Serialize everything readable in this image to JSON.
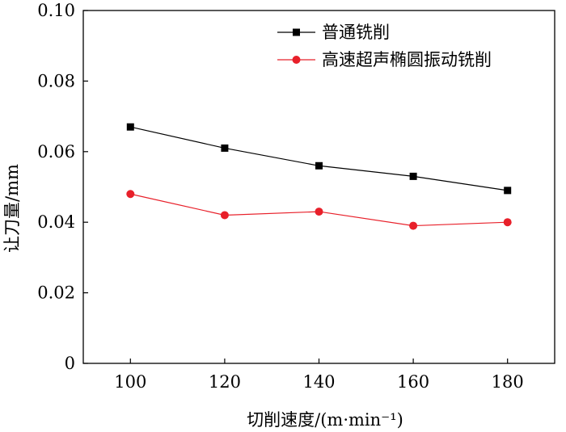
{
  "chart_data": {
    "type": "line",
    "title": "",
    "xlabel": "切削速度/(m·min⁻¹)",
    "ylabel": "让刀量/mm",
    "x": [
      100,
      120,
      140,
      160,
      180
    ],
    "xlim": [
      90,
      190
    ],
    "ylim": [
      0,
      0.1
    ],
    "xticks": [
      100,
      120,
      140,
      160,
      180
    ],
    "xtick_labels": [
      "100",
      "120",
      "140",
      "160",
      "180"
    ],
    "yticks": [
      0,
      0.02,
      0.04,
      0.06,
      0.08,
      0.1
    ],
    "ytick_labels": [
      "0",
      "0.02",
      "0.04",
      "0.06",
      "0.08",
      "0.10"
    ],
    "grid": false,
    "legend_position": "top-right",
    "series": [
      {
        "name": "普通铣削",
        "color": "#000000",
        "marker": "square",
        "values": [
          0.067,
          0.061,
          0.056,
          0.053,
          0.049
        ]
      },
      {
        "name": "高速超声椭圆振动铣削",
        "color": "#e8202a",
        "marker": "circle",
        "values": [
          0.048,
          0.042,
          0.043,
          0.039,
          0.04
        ]
      }
    ]
  }
}
